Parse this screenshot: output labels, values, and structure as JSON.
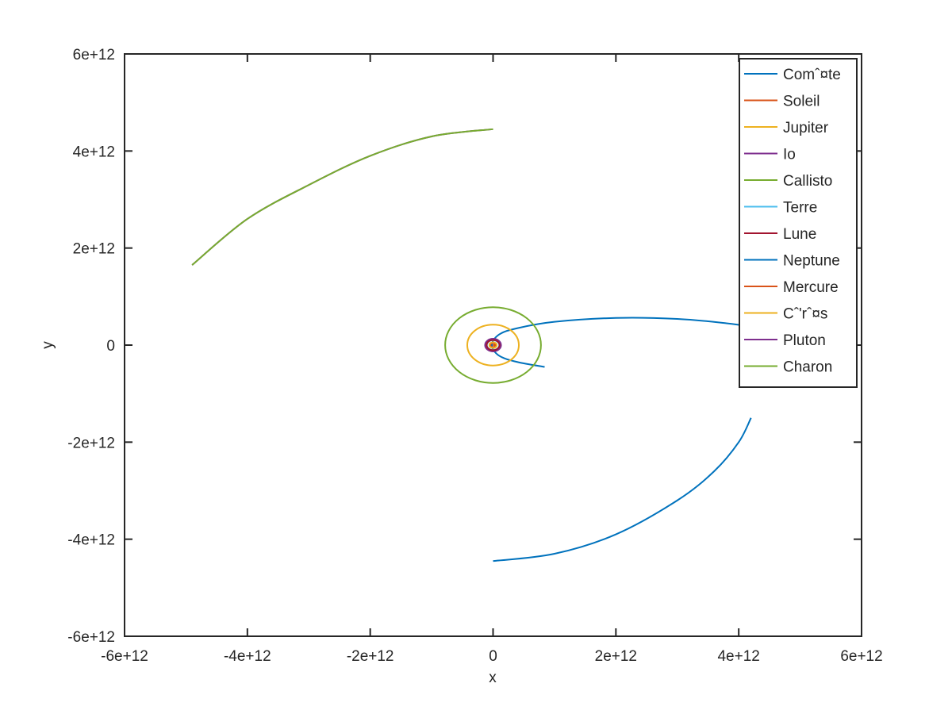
{
  "chart_data": {
    "type": "line",
    "title": "",
    "xlabel": "x",
    "ylabel": "y",
    "xlim": [
      -6000000000000.0,
      6000000000000.0
    ],
    "ylim": [
      -6000000000000.0,
      6000000000000.0
    ],
    "xticks": [
      -6000000000000.0,
      -4000000000000.0,
      -2000000000000.0,
      0,
      2000000000000.0,
      4000000000000.0,
      6000000000000.0
    ],
    "yticks": [
      -6000000000000.0,
      -4000000000000.0,
      -2000000000000.0,
      0,
      2000000000000.0,
      4000000000000.0,
      6000000000000.0
    ],
    "xtick_labels": [
      "-6e+12",
      "-4e+12",
      "-2e+12",
      "0",
      "2e+12",
      "4e+12",
      "6e+12"
    ],
    "ytick_labels": [
      "-6e+12",
      "-4e+12",
      "-2e+12",
      "0",
      "2e+12",
      "4e+12",
      "6e+12"
    ],
    "grid": false,
    "legend_position": "top-right",
    "series": [
      {
        "name": "Comˆ¤te",
        "color": "#0072BD",
        "x": [
          840000000000.0,
          400000000000.0,
          100000000000.0,
          -20000000000.0,
          100000000000.0,
          400000000000.0,
          1000000000000.0,
          2000000000000.0,
          3000000000000.0,
          3800000000000.0,
          4300000000000.0
        ],
        "y": [
          -450000000000.0,
          -350000000000.0,
          -220000000000.0,
          0,
          220000000000.0,
          350000000000.0,
          480000000000.0,
          560000000000.0,
          540000000000.0,
          450000000000.0,
          360000000000.0
        ]
      },
      {
        "name": "Soleil",
        "color": "#D95319",
        "x": [
          0,
          10000000000.0,
          30000000000.0,
          40000000000.0,
          30000000000.0,
          10000000000.0,
          0
        ],
        "y": [
          0,
          10000000000.0,
          10000000000.0,
          0,
          -10000000000.0,
          -10000000000.0,
          0
        ]
      },
      {
        "name": "Jupiter",
        "color": "#EDB120",
        "ellipse": {
          "cx": 0,
          "cy": 0,
          "rx": 420000000000.0,
          "ry": 420000000000.0
        }
      },
      {
        "name": "Io",
        "color": "#7E2F8E",
        "ellipse": {
          "cx": 0,
          "cy": 0,
          "rx": 130000000000.0,
          "ry": 130000000000.0
        }
      },
      {
        "name": "Callisto",
        "color": "#77AC30",
        "ellipse": {
          "cx": 0,
          "cy": 0,
          "rx": 780000000000.0,
          "ry": 780000000000.0
        }
      },
      {
        "name": "Terre",
        "color": "#4DBEEE",
        "ellipse": {
          "cx": 0,
          "cy": 0,
          "rx": 100000000000.0,
          "ry": 100000000000.0
        }
      },
      {
        "name": "Lune",
        "color": "#A2142F",
        "ellipse": {
          "cx": 0,
          "cy": 0,
          "rx": 105000000000.0,
          "ry": 105000000000.0
        }
      },
      {
        "name": "Neptune",
        "color": "#0072BD",
        "x": [
          0,
          1000000000000.0,
          2000000000000.0,
          3000000000000.0,
          3600000000000.0,
          4000000000000.0,
          4200000000000.0
        ],
        "y": [
          -4450000000000.0,
          -4300000000000.0,
          -3900000000000.0,
          -3200000000000.0,
          -2600000000000.0,
          -2000000000000.0,
          -1500000000000.0
        ]
      },
      {
        "name": "Mercure",
        "color": "#D95319",
        "ellipse": {
          "cx": 0,
          "cy": 0,
          "rx": 45000000000.0,
          "ry": 45000000000.0
        }
      },
      {
        "name": "Cˆ'rˆ¤s",
        "color": "#EDB120",
        "ellipse": {
          "cx": 0,
          "cy": 0,
          "rx": 60000000000.0,
          "ry": 60000000000.0
        }
      },
      {
        "name": "Pluton",
        "color": "#7E2F8E",
        "x": [
          0,
          -1000000000000.0,
          -2000000000000.0,
          -3000000000000.0,
          -4000000000000.0,
          -4900000000000.0
        ],
        "y": [
          4450000000000.0,
          4300000000000.0,
          3900000000000.0,
          3300000000000.0,
          2600000000000.0,
          1650000000000.0
        ]
      },
      {
        "name": "Charon",
        "color": "#77AC30",
        "x": [
          0,
          -1000000000000.0,
          -2000000000000.0,
          -3000000000000.0,
          -4000000000000.0,
          -4900000000000.0
        ],
        "y": [
          4450000000000.0,
          4300000000000.0,
          3900000000000.0,
          3300000000000.0,
          2600000000000.0,
          1650000000000.0
        ]
      }
    ]
  }
}
